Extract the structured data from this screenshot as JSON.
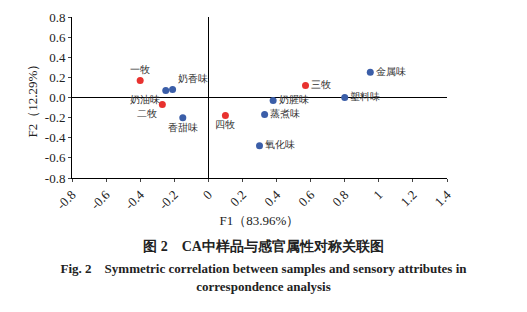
{
  "chart_data": {
    "type": "scatter",
    "x_label": "F1（83.96%）",
    "y_label": "F2（12.29%）",
    "xlim": [
      -0.8,
      1.4
    ],
    "xticks": [
      -0.8,
      -0.6,
      -0.4,
      -0.2,
      0,
      0.2,
      0.4,
      0.6,
      0.8,
      1,
      1.2,
      1.4
    ],
    "ylim": [
      -0.8,
      0.8
    ],
    "yticks": [
      -0.8,
      -0.6,
      -0.4,
      -0.2,
      {
        "value": 0,
        "label": "0.0"
      },
      0.2,
      0.4,
      0.6,
      0.8
    ],
    "grid": false,
    "series": [
      {
        "color": "#e8322f",
        "labels": [
          "一牧",
          "二牧",
          "三牧",
          "四牧"
        ],
        "x": [
          -0.4,
          -0.27,
          0.57,
          0.1
        ],
        "values": [
          0.17,
          -0.07,
          0.12,
          -0.18
        ]
      },
      {
        "color": "#3b5ea8",
        "labels": [
          "奶香味",
          "奶油味",
          "香甜味",
          "金属味",
          "塑料味",
          "奶腥味",
          "蒸煮味",
          "氧化味"
        ],
        "x": [
          -0.21,
          -0.25,
          -0.15,
          0.95,
          0.8,
          0.38,
          0.33,
          0.3
        ],
        "values": [
          0.08,
          0.07,
          -0.2,
          0.25,
          0.0,
          -0.03,
          -0.17,
          -0.48
        ]
      }
    ],
    "caption": {
      "zh": "图 2　CA中样品与感官属性对称关联图",
      "en": "Fig. 2　Symmetric correlation between samples and sensory attributes in correspondence analysis"
    }
  }
}
